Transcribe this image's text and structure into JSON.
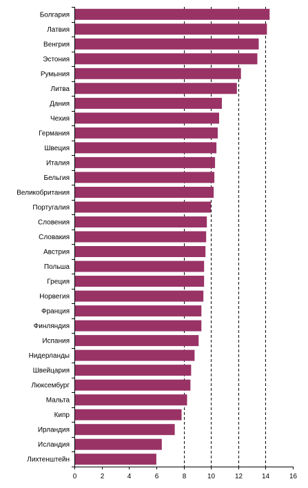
{
  "chart_data": {
    "type": "bar",
    "orientation": "horizontal",
    "categories": [
      "Болгария",
      "Латвия",
      "Венгрия",
      "Эстония",
      "Румыния",
      "Литва",
      "Дания",
      "Чехия",
      "Германия",
      "Швеция",
      "Италия",
      "Бельгия",
      "Великобритания",
      "Португалия",
      "Словения",
      "Словакия",
      "Австрия",
      "Польша",
      "Греция",
      "Норвегия",
      "Франция",
      "Финляндия",
      "Испания",
      "Нидерланды",
      "Швейцария",
      "Люксембург",
      "Мальта",
      "Кипр",
      "Ирландия",
      "Исландия",
      "Лихтенштейн"
    ],
    "values": [
      14.3,
      14.1,
      13.5,
      13.4,
      12.2,
      11.9,
      10.8,
      10.6,
      10.5,
      10.4,
      10.3,
      10.25,
      10.2,
      10.0,
      9.7,
      9.65,
      9.6,
      9.5,
      9.5,
      9.45,
      9.3,
      9.3,
      9.1,
      8.8,
      8.55,
      8.5,
      8.25,
      7.85,
      7.35,
      6.4,
      6.0
    ],
    "xlim": [
      0,
      16
    ],
    "x_ticks": [
      "0",
      "2",
      "4",
      "6",
      "8",
      "10",
      "12",
      "14",
      "16"
    ],
    "grid": "vertical dashed lines at 8, 10, 12, 14",
    "bar_color": "#993366",
    "title": "",
    "xlabel": "",
    "ylabel": ""
  }
}
